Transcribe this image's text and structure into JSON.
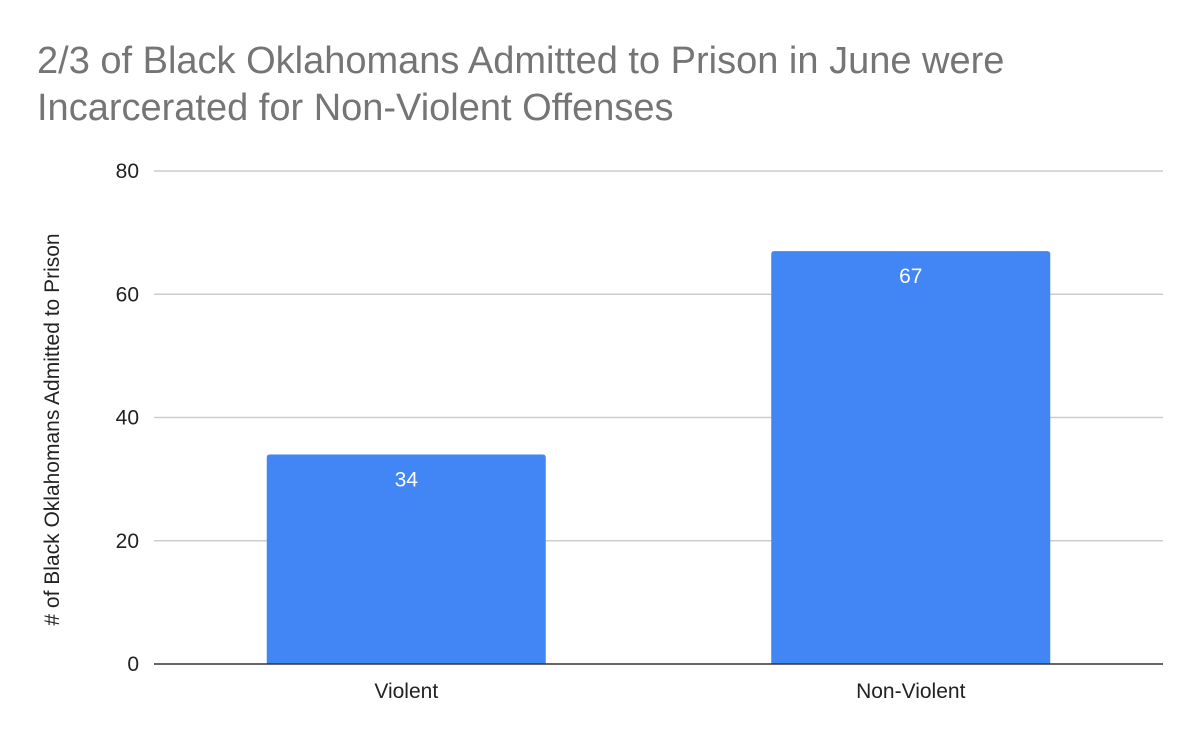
{
  "chart_data": {
    "type": "bar",
    "title": "2/3 of Black Oklahomans Admitted to Prison in June were Incarcerated for Non-Violent Offenses",
    "categories": [
      "Violent",
      "Non-Violent"
    ],
    "values": [
      34,
      67
    ],
    "data_labels": [
      "34",
      "67"
    ],
    "ylabel": "#  of Black Oklahomans Admitted to Prison",
    "xlabel": "",
    "ylim": [
      0,
      80
    ],
    "yticks": [
      0,
      20,
      40,
      60,
      80
    ],
    "ytick_labels": [
      "0",
      "20",
      "40",
      "60",
      "80"
    ],
    "grid": true,
    "legend": "none",
    "colors": {
      "bar": "#4285f4",
      "grid": "#cccccc",
      "axis": "#333333",
      "title": "#757575"
    }
  }
}
